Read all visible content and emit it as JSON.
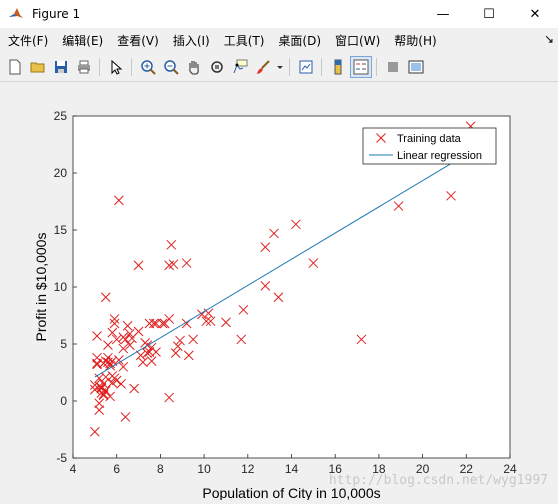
{
  "window": {
    "title": "Figure 1",
    "controls": {
      "minimize": "—",
      "maximize": "☐",
      "close": "✕"
    }
  },
  "menu": {
    "items": [
      "文件(F)",
      "编辑(E)",
      "查看(V)",
      "插入(I)",
      "工具(T)",
      "桌面(D)",
      "窗口(W)",
      "帮助(H)"
    ],
    "overflow": "↘"
  },
  "toolbar": {
    "buttons": [
      "new-figure",
      "open-file",
      "save",
      "print",
      "edit-plot-pointer",
      "zoom-in",
      "zoom-out",
      "pan",
      "rotate-3d",
      "data-cursor",
      "brush",
      "brush-dropdown",
      "link-plot",
      "insert-colorbar",
      "insert-legend",
      "hide-plot-tools",
      "show-plot-tools"
    ]
  },
  "watermark": "http://blog.csdn.net/wyg1997",
  "colors": {
    "marker": "#e02020",
    "line": "#1f77b4",
    "axes_bg": "#ffffff",
    "figure_bg": "#f0f0f0"
  },
  "chart_data": {
    "type": "scatter",
    "title": "",
    "xlabel": "Population of City in 10,000s",
    "ylabel": "Profit in $10,000s",
    "xlim": [
      4,
      24
    ],
    "ylim": [
      -5,
      25
    ],
    "xticks": [
      4,
      6,
      8,
      10,
      12,
      14,
      16,
      18,
      20,
      22,
      24
    ],
    "yticks": [
      -5,
      0,
      5,
      10,
      15,
      20,
      25
    ],
    "legend_position": "top-right",
    "grid": false,
    "series": [
      {
        "name": "Training data",
        "marker": "x",
        "points": [
          [
            6.1,
            17.6
          ],
          [
            5.5,
            9.1
          ],
          [
            8.5,
            13.7
          ],
          [
            7.0,
            11.9
          ],
          [
            5.9,
            6.8
          ],
          [
            8.4,
            11.9
          ],
          [
            7.5,
            4.3
          ],
          [
            8.6,
            12.0
          ],
          [
            6.5,
            6.6
          ],
          [
            5.1,
            3.8
          ],
          [
            5.7,
            3.3
          ],
          [
            14.2,
            15.5
          ],
          [
            5.7,
            3.1
          ],
          [
            8.4,
            7.2
          ],
          [
            6.4,
            5.4
          ],
          [
            5.1,
            3.3
          ],
          [
            6.0,
            1.8
          ],
          [
            5.5,
            2.1
          ],
          [
            9.2,
            12.1
          ],
          [
            5.3,
            1.1
          ],
          [
            8.9,
            5.3
          ],
          [
            6.7,
            5.5
          ],
          [
            5.9,
            7.2
          ],
          [
            7.6,
            4.7
          ],
          [
            5.4,
            0.6
          ],
          [
            13.4,
            9.1
          ],
          [
            12.8,
            13.5
          ],
          [
            10.1,
            7.0
          ],
          [
            8.1,
            6.8
          ],
          [
            5.8,
            6.0
          ],
          [
            8.4,
            0.3
          ],
          [
            6.4,
            -1.4
          ],
          [
            5.6,
            3.8
          ],
          [
            12.8,
            10.1
          ],
          [
            5.6,
            4.9
          ],
          [
            7.8,
            4.3
          ],
          [
            17.2,
            5.4
          ],
          [
            8.7,
            4.2
          ],
          [
            5.6,
            3.4
          ],
          [
            6.3,
            4.6
          ],
          [
            5.1,
            5.7
          ],
          [
            5.8,
            1.6
          ],
          [
            11.7,
            5.4
          ],
          [
            5.5,
            3.5
          ],
          [
            5.3,
            0.7
          ],
          [
            7.6,
            3.5
          ],
          [
            5.1,
            3.2
          ],
          [
            7.1,
            4.0
          ],
          [
            6.8,
            1.1
          ],
          [
            5.0,
            -2.7
          ],
          [
            9.5,
            5.4
          ],
          [
            6.2,
            1.5
          ],
          [
            5.4,
            1.5
          ],
          [
            10.3,
            7.0
          ],
          [
            5.2,
            1.3
          ],
          [
            5.4,
            3.3
          ],
          [
            15.0,
            12.1
          ],
          [
            5.0,
            1.0
          ],
          [
            5.4,
            0.5
          ],
          [
            7.0,
            6.1
          ],
          [
            6.6,
            4.9
          ],
          [
            5.5,
            0.9
          ],
          [
            9.3,
            4.0
          ],
          [
            10.2,
            7.7
          ],
          [
            21.3,
            18.0
          ],
          [
            18.9,
            17.1
          ],
          [
            22.2,
            24.1
          ],
          [
            13.2,
            14.7
          ],
          [
            6.6,
            5.9
          ],
          [
            7.4,
            4.9
          ],
          [
            5.2,
            -0.2
          ],
          [
            5.0,
            1.4
          ],
          [
            5.8,
            3.5
          ],
          [
            5.3,
            1.2
          ],
          [
            6.1,
            3.6
          ],
          [
            8.8,
            4.8
          ],
          [
            7.2,
            3.4
          ],
          [
            5.2,
            2.0
          ],
          [
            7.8,
            6.8
          ],
          [
            11.8,
            8.0
          ],
          [
            7.3,
            5.1
          ],
          [
            9.9,
            7.6
          ],
          [
            6.3,
            5.6
          ],
          [
            6.0,
            5.4
          ],
          [
            7.7,
            6.8
          ],
          [
            11.0,
            6.9
          ],
          [
            5.8,
            2.2
          ],
          [
            7.4,
            4.2
          ],
          [
            8.2,
            6.8
          ],
          [
            5.7,
            0.4
          ],
          [
            6.3,
            3.0
          ],
          [
            5.2,
            -0.8
          ],
          [
            5.9,
            2.0
          ],
          [
            7.5,
            6.8
          ],
          [
            9.2,
            6.8
          ]
        ]
      },
      {
        "name": "Linear regression",
        "line": true,
        "points": [
          [
            5.0,
            2.1
          ],
          [
            22.5,
            22.2
          ]
        ]
      }
    ]
  }
}
